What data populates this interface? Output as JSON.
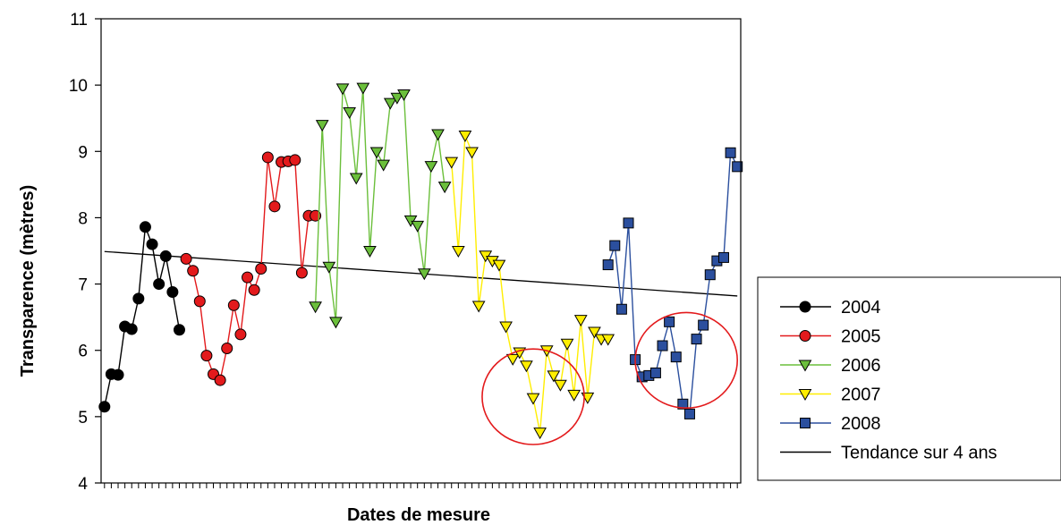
{
  "chart_data": {
    "type": "line",
    "xlabel": "Dates de mesure",
    "ylabel": "Transparence (mètres)",
    "ylim": [
      4,
      11
    ],
    "yticks": [
      "4",
      "5",
      "6",
      "7",
      "8",
      "9",
      "10",
      "11"
    ],
    "grid": false,
    "legend_position": "right",
    "series": [
      {
        "name": "2004",
        "color": "#000000",
        "marker": "circle",
        "x": [
          1,
          2,
          3,
          4,
          5,
          6,
          7,
          8,
          9,
          10,
          11,
          12
        ],
        "values": [
          5.15,
          5.64,
          5.63,
          6.36,
          6.32,
          6.78,
          7.86,
          7.6,
          7.0,
          7.42,
          6.88,
          6.31
        ]
      },
      {
        "name": "2005",
        "color": "#e31a1c",
        "marker": "circle",
        "x": [
          13,
          14,
          15,
          16,
          17,
          18,
          19,
          20,
          21,
          22,
          23,
          24,
          25,
          26,
          27,
          28,
          29,
          30,
          31,
          32
        ],
        "values": [
          7.38,
          7.2,
          6.74,
          5.92,
          5.64,
          5.55,
          6.03,
          6.68,
          6.24,
          7.1,
          6.91,
          7.23,
          8.91,
          8.17,
          8.84,
          8.85,
          8.87,
          7.17,
          8.03,
          8.03
        ]
      },
      {
        "name": "2006",
        "color": "#6bbf3b",
        "marker": "triangle-down",
        "x": [
          32,
          33,
          34,
          35,
          36,
          37,
          38,
          39,
          40,
          41,
          42,
          43,
          44,
          45,
          46,
          47,
          48,
          49,
          50,
          51
        ],
        "values": [
          6.66,
          9.4,
          7.26,
          6.43,
          9.95,
          9.59,
          8.6,
          9.96,
          7.5,
          8.99,
          8.8,
          9.73,
          9.81,
          9.86,
          7.96,
          7.88,
          7.16,
          8.78,
          9.26,
          8.47
        ]
      },
      {
        "name": "2007",
        "color": "#ffee00",
        "marker": "triangle-down",
        "x": [
          52,
          53,
          54,
          55,
          56,
          57,
          58,
          59,
          60,
          61,
          62,
          63,
          64,
          65,
          66,
          67,
          68,
          69,
          70,
          71,
          72,
          73,
          74,
          75
        ],
        "values": [
          8.84,
          7.5,
          9.24,
          8.99,
          6.67,
          7.43,
          7.35,
          7.29,
          6.36,
          5.87,
          5.97,
          5.77,
          5.28,
          4.76,
          6.0,
          5.62,
          5.48,
          6.1,
          5.33,
          6.46,
          5.29,
          6.28,
          6.17,
          6.17
        ]
      },
      {
        "name": "2008",
        "color": "#2b4f9e",
        "marker": "square",
        "x": [
          75,
          76,
          77,
          78,
          79,
          80,
          81,
          82,
          83,
          84,
          85,
          86,
          87,
          88,
          89,
          90,
          91,
          92,
          93,
          94
        ],
        "values": [
          7.29,
          7.58,
          6.62,
          7.92,
          5.86,
          5.6,
          5.62,
          5.66,
          6.07,
          6.43,
          5.9,
          5.19,
          5.04,
          6.17,
          6.38,
          7.14,
          7.35,
          7.4,
          8.98,
          8.77
        ]
      }
    ],
    "trend": {
      "name": "Tendance sur 4 ans",
      "color": "#000000",
      "x": [
        1,
        94
      ],
      "values": [
        7.49,
        6.82
      ]
    },
    "highlights": [
      {
        "shape": "ellipse",
        "color": "#e31a1c",
        "cx": 64,
        "cy": 5.3,
        "rx": 7.5,
        "ry": 0.72
      },
      {
        "shape": "ellipse",
        "color": "#e31a1c",
        "cx": 86.5,
        "cy": 5.85,
        "rx": 7.5,
        "ry": 0.72
      }
    ]
  }
}
